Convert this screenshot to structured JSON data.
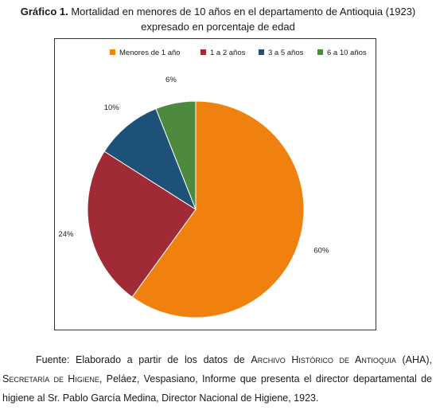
{
  "title": {
    "label": "Gráfico 1.",
    "line1": "Mortalidad en menores de 10 años en el departamento de Antioquia (1923)",
    "line2": "expresado en porcentaje de edad"
  },
  "chart_data": {
    "type": "pie",
    "categories": [
      "Menores de 1 año",
      "1 a 2 años",
      "3 a 5 años",
      "6 a 10 años"
    ],
    "values": [
      60,
      24,
      10,
      6
    ],
    "value_labels": [
      "60%",
      "24%",
      "10%",
      "6%"
    ],
    "colors": [
      "#f0810f",
      "#a12a37",
      "#1d5178",
      "#4e8a3e"
    ],
    "legend_position": "top",
    "start_angle_deg": 0,
    "direction": "clockwise"
  },
  "source": {
    "prefix": "Fuente: Elaborado a partir de los datos de ",
    "archive": "Archivo Histórico de Antioquia",
    "archive_abbr": " (AHA), ",
    "secretaria": "Secretaría de Higiene",
    "rest": ", Peláez, Vespasiano, Informe que presenta el director departamental de higiene al Sr. Pablo García Medina, Director Nacional de Higiene, 1923."
  }
}
